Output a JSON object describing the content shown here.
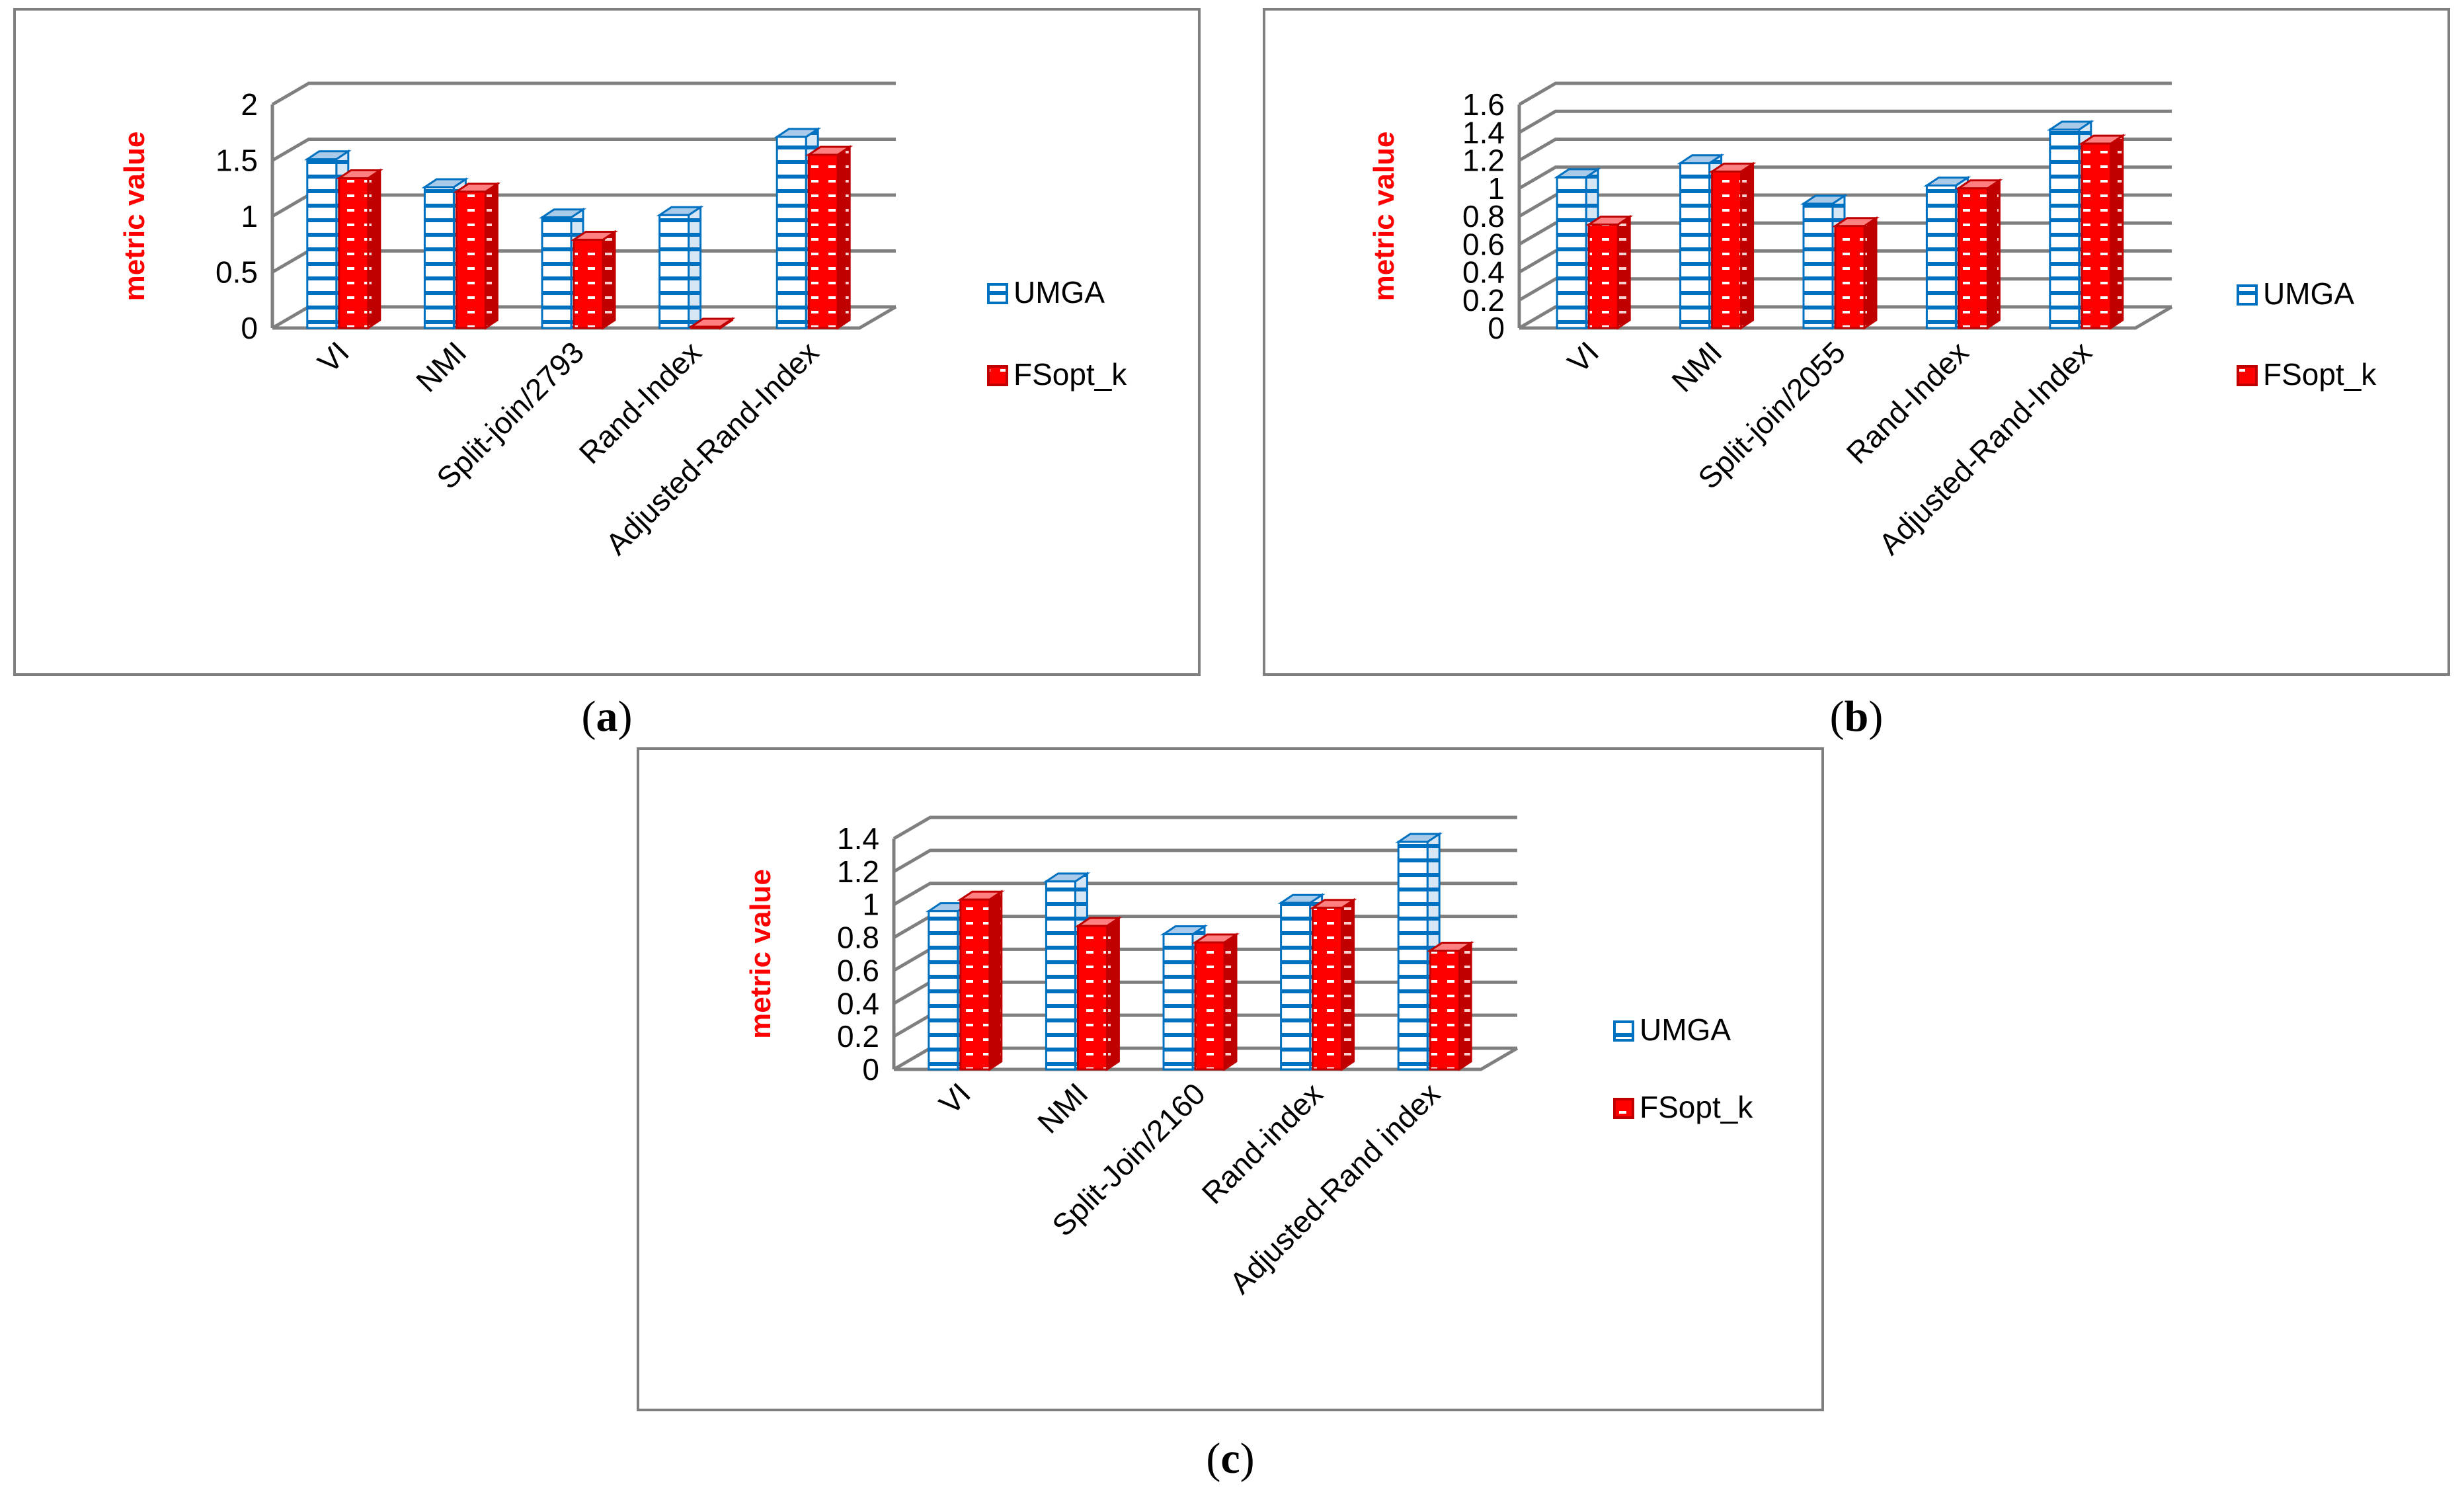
{
  "legend_colors": {
    "UMGA": "#0070c0",
    "FSopt_k": "#ff0000"
  },
  "chart_data": [
    {
      "type": "bar",
      "panel_label": "a",
      "ylabel": "metric value",
      "ylim": [
        0,
        2
      ],
      "yticks": [
        "0",
        "0.5",
        "1",
        "1.5",
        "2"
      ],
      "categories": [
        "VI",
        "NMI",
        "Split-join/2793",
        "Rand-Index",
        "Adjusted-Rand-Index"
      ],
      "legend": [
        "UMGA",
        "FSopt_k"
      ],
      "series": [
        {
          "name": "UMGA",
          "values": [
            1.51,
            1.26,
            0.99,
            1.01,
            1.71
          ]
        },
        {
          "name": "FSopt_k",
          "values": [
            1.34,
            1.22,
            0.79,
            0.0,
            1.55
          ]
        }
      ]
    },
    {
      "type": "bar",
      "panel_label": "b",
      "ylabel": "metric value",
      "ylim": [
        0,
        1.6
      ],
      "yticks": [
        "0",
        "0.2",
        "0.4",
        "0.6",
        "0.8",
        "1",
        "1.2",
        "1.4",
        "1.6"
      ],
      "categories": [
        "VI",
        "NMI",
        "Split-join/2055",
        "Rand-Index",
        "Adjusted-Rand-Index"
      ],
      "legend": [
        "UMGA",
        "FSopt_k"
      ],
      "series": [
        {
          "name": "UMGA",
          "values": [
            1.08,
            1.18,
            0.89,
            1.02,
            1.42
          ]
        },
        {
          "name": "FSopt_k",
          "values": [
            0.74,
            1.12,
            0.73,
            1.0,
            1.32
          ]
        }
      ]
    },
    {
      "type": "bar",
      "panel_label": "c",
      "ylabel": "metric value",
      "ylim": [
        0,
        1.4
      ],
      "yticks": [
        "0",
        "0.2",
        "0.4",
        "0.6",
        "0.8",
        "1",
        "1.2",
        "1.4"
      ],
      "categories": [
        "VI",
        "NMI",
        "Split-Join/2160",
        "Rand-index",
        "Adjusted-Rand index"
      ],
      "legend": [
        "UMGA",
        "FSopt_k"
      ],
      "series": [
        {
          "name": "UMGA",
          "values": [
            0.96,
            1.14,
            0.82,
            1.01,
            1.38
          ]
        },
        {
          "name": "FSopt_k",
          "values": [
            1.03,
            0.87,
            0.77,
            0.98,
            0.72
          ]
        }
      ]
    }
  ]
}
